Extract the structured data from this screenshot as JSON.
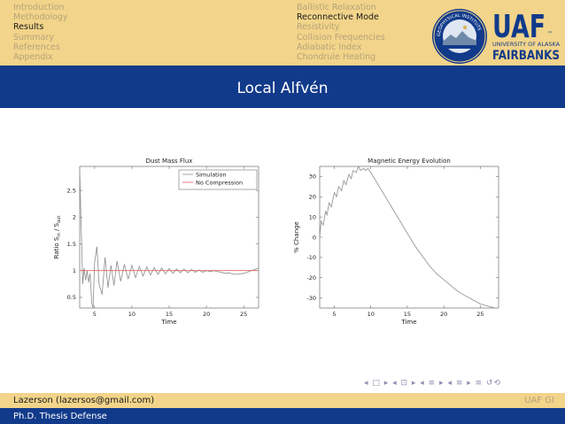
{
  "header": {
    "nav_left": [
      "Introduction",
      "Methodology",
      "Results",
      "Summary",
      "References",
      "Appendix"
    ],
    "nav_left_active": 2,
    "nav_right": [
      "Ballistic Relaxation",
      "Reconnective Mode",
      "Resistivity",
      "Collision Frequencies",
      "Adiabatic Index",
      "Chondrule Heating"
    ],
    "nav_right_active": 1,
    "logo_text": {
      "uaf": "UAF",
      "university": "UNIVERSITY OF ALASKA",
      "fairbanks": "FAIRBANKS",
      "seal": "GEOPHYSICAL INSTITUTE"
    }
  },
  "slide": {
    "title": "Local Alfvén"
  },
  "footer": {
    "author": "Lazerson (lazersos@gmail.com)",
    "institution": "UAF GI",
    "talk": "Ph.D. Thesis Defense"
  },
  "colors": {
    "header_bg": "#f2d48a",
    "title_bg": "#113a8a",
    "inactive_text": "#b6a379",
    "simulation_line": "#8c8c8c",
    "no_compression_line": "#e06060"
  },
  "chart_data": [
    {
      "type": "line",
      "title": "Dust Mass Flux",
      "xlabel": "Time",
      "ylabel": "Ratio S",
      "ylabel_sub1": "in",
      "ylabel_mid": " / S",
      "ylabel_sub2": "out",
      "xlim": [
        3,
        27
      ],
      "ylim": [
        0.3,
        2.95
      ],
      "xticks": [
        5,
        10,
        15,
        20,
        25
      ],
      "yticks": [
        0.5,
        1,
        1.5,
        2,
        2.5
      ],
      "legend_position": "top-right",
      "series": [
        {
          "name": "Simulation",
          "color": "#8c8c8c",
          "x": [
            3.0,
            3.2,
            3.4,
            3.6,
            3.8,
            4.0,
            4.2,
            4.4,
            4.6,
            4.8,
            5.0,
            5.3,
            5.6,
            6.0,
            6.4,
            6.8,
            7.2,
            7.6,
            8.0,
            8.5,
            9.0,
            9.5,
            10.0,
            10.5,
            11.0,
            11.5,
            12.0,
            12.5,
            13.0,
            13.5,
            14.0,
            14.5,
            15.0,
            15.5,
            16.0,
            16.5,
            17.0,
            17.5,
            18.0,
            18.5,
            19.0,
            19.5,
            20.0,
            20.5,
            21.0,
            21.5,
            22.0,
            22.5,
            23.0,
            23.5,
            24.0,
            24.5,
            25.0,
            25.5,
            26.0,
            26.5,
            27.0
          ],
          "y": [
            2.9,
            1.8,
            0.75,
            1.05,
            0.82,
            1.0,
            0.78,
            0.95,
            0.4,
            0.3,
            1.15,
            1.45,
            0.75,
            0.55,
            1.25,
            0.68,
            1.1,
            0.72,
            1.18,
            0.8,
            1.12,
            0.84,
            1.1,
            0.87,
            1.08,
            0.9,
            1.07,
            0.92,
            1.06,
            0.93,
            1.05,
            0.94,
            1.04,
            0.95,
            1.03,
            0.96,
            1.03,
            0.96,
            1.02,
            0.97,
            1.01,
            0.97,
            1.0,
            0.98,
            1.0,
            0.98,
            0.97,
            0.95,
            0.96,
            0.94,
            0.93,
            0.94,
            0.95,
            0.97,
            1.0,
            1.02,
            1.05
          ]
        },
        {
          "name": "No Compression",
          "color": "#e06060",
          "x": [
            3,
            27
          ],
          "y": [
            1.0,
            1.0
          ]
        }
      ]
    },
    {
      "type": "line",
      "title": "Magnetic Energy Evolution",
      "xlabel": "Time",
      "ylabel": "% Change",
      "xlim": [
        3,
        27.5
      ],
      "ylim": [
        -35,
        35
      ],
      "xticks": [
        5,
        10,
        15,
        20,
        25
      ],
      "yticks": [
        -30,
        -20,
        -10,
        0,
        10,
        20,
        30
      ],
      "series": [
        {
          "name": "",
          "color": "#8c8c8c",
          "x": [
            3.0,
            3.2,
            3.5,
            3.8,
            4.0,
            4.3,
            4.6,
            5.0,
            5.3,
            5.6,
            6.0,
            6.3,
            6.6,
            7.0,
            7.3,
            7.6,
            8.0,
            8.3,
            8.6,
            9.0,
            9.3,
            9.6,
            10.0,
            10.5,
            11.0,
            11.5,
            12.0,
            12.5,
            13.0,
            14.0,
            15.0,
            16.0,
            17.0,
            18.0,
            19.0,
            20.0,
            21.0,
            22.0,
            23.0,
            24.0,
            25.0,
            26.0,
            27.0
          ],
          "y": [
            0,
            8,
            6,
            13,
            11,
            17,
            15,
            22,
            20,
            25,
            23,
            28,
            26,
            31,
            29,
            33,
            32,
            35,
            33,
            34,
            33,
            34,
            32,
            29,
            26,
            23,
            20,
            17,
            14,
            8,
            2,
            -4,
            -9,
            -14,
            -18,
            -21,
            -24,
            -27,
            -29,
            -31,
            -33,
            -34,
            -35
          ]
        }
      ]
    }
  ]
}
